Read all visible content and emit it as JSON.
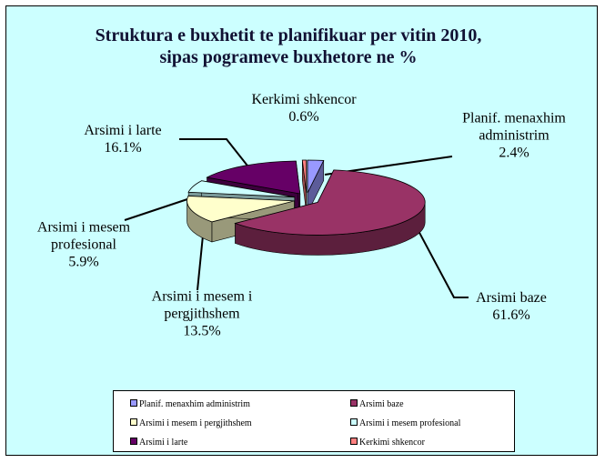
{
  "chart_data": {
    "type": "pie",
    "title": "Struktura e buxhetit te planifikuar per vitin 2010,\nsipas pogrameve buxhetore ne %",
    "categories": [
      "Planif. menaxhim administrim",
      "Arsimi baze",
      "Arsimi i mesem i pergjithshem",
      "Arsimi i mesem profesional",
      "Arsimi i larte",
      "Kerkimi shkencor"
    ],
    "values": [
      2.4,
      61.6,
      13.5,
      5.9,
      16.1,
      0.6
    ],
    "value_labels": [
      "2.4%",
      "61.6%",
      "13.5%",
      "5.9%",
      "16.1%",
      "0.6%"
    ],
    "colors": [
      "#9999ff",
      "#993366",
      "#ffffcc",
      "#ccffff",
      "#660066",
      "#ff8080"
    ],
    "legend": "bottom"
  }
}
